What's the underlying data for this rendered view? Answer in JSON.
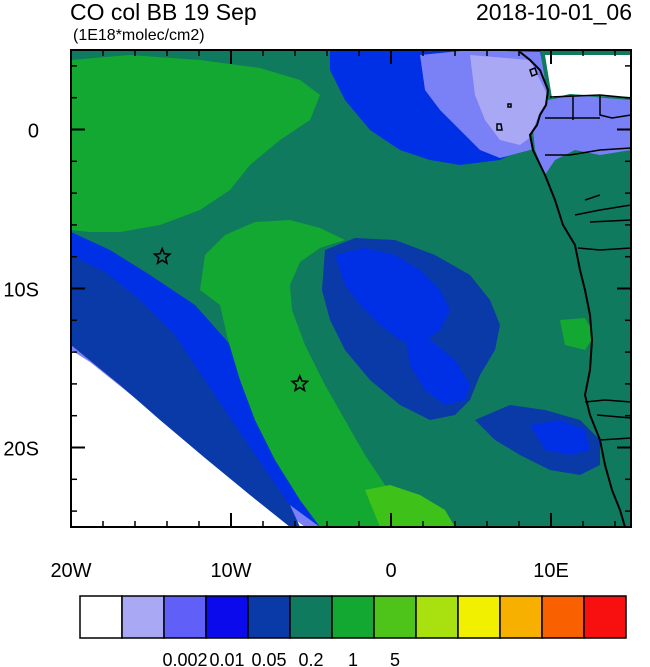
{
  "header": {
    "title_left": "CO col BB 19 Sep",
    "title_right": "2018-10-01_06",
    "subtitle": "(1E18*molec/cm2)"
  },
  "map": {
    "lon_range": [
      -20,
      15
    ],
    "lat_range": [
      -25,
      5
    ],
    "lon_ticks": [
      {
        "value": -20,
        "label": "20W"
      },
      {
        "value": -10,
        "label": "10W"
      },
      {
        "value": 0,
        "label": "0"
      },
      {
        "value": 10,
        "label": "10E"
      }
    ],
    "lat_ticks": [
      {
        "value": 0,
        "label": "0"
      },
      {
        "value": -10,
        "label": "10S"
      },
      {
        "value": -20,
        "label": "20S"
      }
    ],
    "markers": [
      {
        "name": "star",
        "lon": -14.3,
        "lat": -8.0
      },
      {
        "name": "star",
        "lon": -5.7,
        "lat": -16.0
      }
    ],
    "colors": {
      "ocean_base": "#0f7a5e",
      "green": "#12a832",
      "bright_green": "#3ec21a",
      "blue": "#0030e6",
      "dark_blue": "#0a3aa8",
      "light_blue": "#7a80f5",
      "no_data": "#ffffff",
      "land_edge": "#000000"
    }
  },
  "colorbar": {
    "colors": [
      "#ffffff",
      "#a8a8f5",
      "#6060f8",
      "#0a0aec",
      "#0a3aa8",
      "#0f7a5e",
      "#12a832",
      "#4ec41a",
      "#a8e010",
      "#f0f000",
      "#f8b000",
      "#f86000",
      "#f81010"
    ],
    "labels": [
      {
        "after_box": 3,
        "text": "0.002"
      },
      {
        "after_box": 4,
        "text": "0.01"
      },
      {
        "after_box": 5,
        "text": "0.05"
      },
      {
        "after_box": 6,
        "text": "0.2"
      },
      {
        "after_box": 7,
        "text": "1"
      },
      {
        "after_box": 8,
        "text": "5"
      }
    ]
  }
}
